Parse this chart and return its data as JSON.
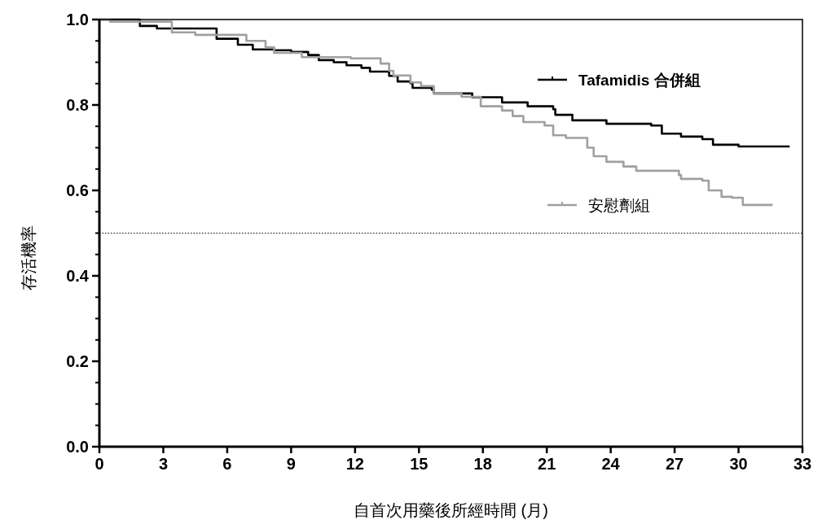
{
  "chart_data": {
    "type": "step",
    "xlabel": "自首次用藥後所經時間 (月)",
    "ylabel": "存活機率",
    "xlim": [
      0,
      33
    ],
    "xticks": [
      0,
      3,
      6,
      9,
      12,
      15,
      18,
      21,
      24,
      27,
      30,
      33
    ],
    "ylim": [
      0,
      1
    ],
    "yticks": [
      {
        "value": 0,
        "label": "0.0"
      },
      {
        "value": 0.2,
        "label": "0.2"
      },
      {
        "value": 0.4,
        "label": "0.4"
      },
      {
        "value": 0.6,
        "label": "0.6"
      },
      {
        "value": 0.8,
        "label": "0.8"
      },
      {
        "value": 1,
        "label": "1.0"
      }
    ],
    "grid": false,
    "legend": "right",
    "line_style": "solid",
    "ref_lines": [
      {
        "axis": "y",
        "value": 0.5,
        "line_style": "dotted",
        "color": "#000000"
      }
    ],
    "series": [
      {
        "name": "Tafamidis 合併組",
        "color": "#000000",
        "x": [
          0,
          1.9,
          2.7,
          5.5,
          6.5,
          7.2,
          8.2,
          9.0,
          9.8,
          10.3,
          11.0,
          11.6,
          12.3,
          12.7,
          13.6,
          14.0,
          14.6,
          14.7,
          15.6,
          15.7,
          17.5,
          18.9,
          20.1,
          21.3,
          21.4,
          22.2,
          23.8,
          25.9,
          26.4,
          27.3,
          28.3,
          28.8,
          30.0,
          32.4
        ],
        "values": [
          1.0,
          0.985,
          0.979,
          0.955,
          0.941,
          0.93,
          0.928,
          0.924,
          0.917,
          0.905,
          0.9,
          0.893,
          0.887,
          0.878,
          0.868,
          0.855,
          0.851,
          0.84,
          0.836,
          0.827,
          0.818,
          0.806,
          0.797,
          0.79,
          0.777,
          0.764,
          0.756,
          0.752,
          0.733,
          0.726,
          0.72,
          0.707,
          0.703,
          0.703
        ]
      },
      {
        "name": "安慰劑組",
        "color": "#a0a0a0",
        "x": [
          0,
          0.5,
          3.4,
          4.5,
          6.9,
          7.8,
          8.2,
          9.5,
          11.8,
          13.2,
          13.6,
          13.8,
          14.6,
          15.1,
          15.7,
          17.0,
          17.9,
          18.9,
          19.4,
          19.9,
          20.9,
          21.3,
          21.9,
          22.9,
          23.2,
          23.8,
          24.6,
          25.2,
          27.2,
          27.3,
          28.3,
          28.6,
          29.2,
          29.7,
          30.2,
          31.6
        ],
        "values": [
          1.0,
          0.995,
          0.97,
          0.964,
          0.95,
          0.935,
          0.922,
          0.912,
          0.909,
          0.897,
          0.88,
          0.869,
          0.853,
          0.844,
          0.827,
          0.819,
          0.797,
          0.787,
          0.774,
          0.76,
          0.752,
          0.729,
          0.723,
          0.7,
          0.68,
          0.667,
          0.656,
          0.646,
          0.636,
          0.627,
          0.623,
          0.6,
          0.585,
          0.583,
          0.566,
          0.566
        ]
      }
    ]
  }
}
